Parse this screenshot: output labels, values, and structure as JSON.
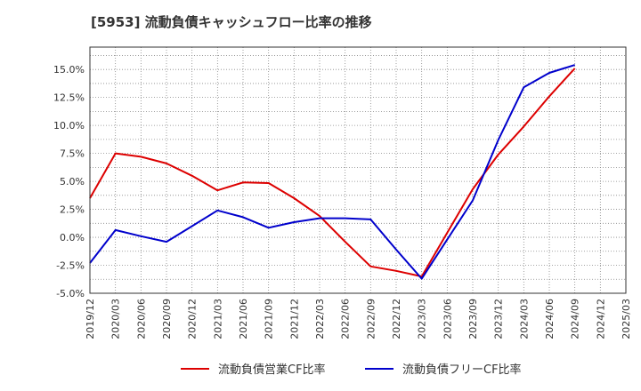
{
  "chart_data": {
    "type": "line",
    "title": "[5953]  流動負債キャッシュフロー比率の推移",
    "x": [
      "2019/12",
      "2020/03",
      "2020/06",
      "2020/09",
      "2020/12",
      "2021/03",
      "2021/06",
      "2021/09",
      "2021/12",
      "2022/03",
      "2022/06",
      "2022/09",
      "2022/12",
      "2023/03",
      "2023/06",
      "2023/09",
      "2023/12",
      "2024/03",
      "2024/06",
      "2024/09",
      "2024/12",
      "2025/03"
    ],
    "ylim": [
      -5.0,
      17.0
    ],
    "yticks": [
      -5.0,
      -2.5,
      0.0,
      2.5,
      5.0,
      7.5,
      10.0,
      12.5,
      15.0
    ],
    "ytick_labels": [
      "-5.0%",
      "-2.5%",
      "0.0%",
      "2.5%",
      "5.0%",
      "7.5%",
      "10.0%",
      "12.5%",
      "15.0%"
    ],
    "grid": true,
    "legend_position": "bottom",
    "series": [
      {
        "name": "流動負債営業CF比率",
        "color": "#dd0000",
        "values": [
          3.5,
          7.5,
          7.2,
          6.6,
          5.5,
          4.2,
          4.9,
          4.85,
          3.5,
          1.9,
          -0.4,
          -2.6,
          -3.0,
          -3.5,
          0.4,
          4.3,
          7.4,
          9.9,
          12.6,
          15.1,
          null,
          null
        ]
      },
      {
        "name": "流動負債フリーCF比率",
        "color": "#0000cc",
        "values": [
          -2.3,
          0.65,
          0.1,
          -0.4,
          1.0,
          2.4,
          1.8,
          0.85,
          1.35,
          1.7,
          1.7,
          1.6,
          -1.1,
          -3.7,
          -0.2,
          3.3,
          8.7,
          13.4,
          14.7,
          15.4,
          null,
          null
        ]
      }
    ]
  }
}
